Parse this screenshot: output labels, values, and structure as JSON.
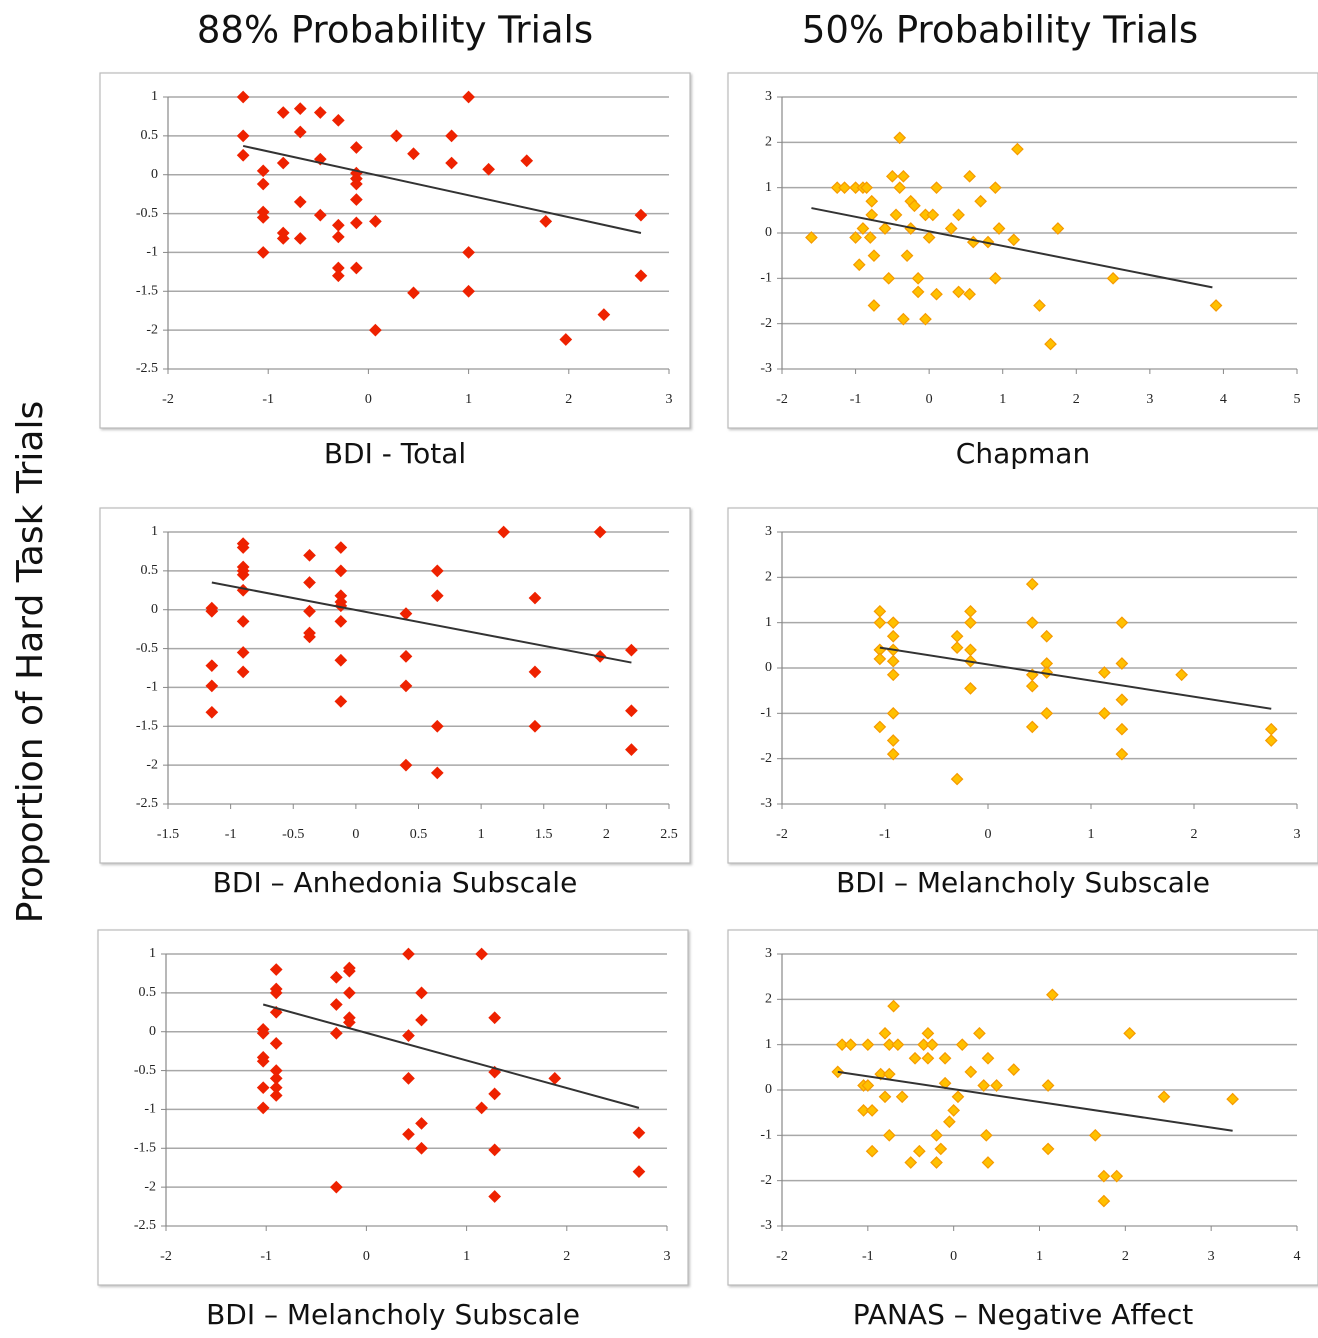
{
  "column_titles": [
    "88% Probability Trials",
    "50% Probability Trials"
  ],
  "ylabel": "Proportion of Hard Task Trials",
  "chart_data": [
    {
      "type": "scatter",
      "xlabel": "BDI - Total",
      "color": "#ee2200",
      "edgecolor": "#ee2200",
      "marker": "diamond",
      "grid": "y",
      "xlim": [
        -2,
        3
      ],
      "xticks": [
        -2,
        -1,
        0,
        1,
        2,
        3
      ],
      "ylim": [
        -2.5,
        1
      ],
      "yticks": [
        -2.5,
        -2,
        -1.5,
        -1,
        -0.5,
        0,
        0.5,
        1
      ],
      "x": [
        -1.25,
        -1.25,
        -1.25,
        -1.05,
        -1.05,
        -1.05,
        -1.05,
        -1.05,
        -0.85,
        -0.85,
        -0.85,
        -0.85,
        -0.68,
        -0.68,
        -0.68,
        -0.68,
        -0.48,
        -0.48,
        -0.48,
        -0.3,
        -0.3,
        -0.3,
        -0.3,
        -0.3,
        -0.12,
        -0.12,
        -0.12,
        -0.12,
        -0.12,
        -0.12,
        -0.12,
        0.07,
        0.07,
        0.28,
        0.45,
        0.45,
        0.83,
        0.83,
        1,
        1,
        1,
        1.2,
        1.58,
        1.77,
        1.97,
        2.35,
        2.72,
        2.72
      ],
      "y": [
        1,
        0.5,
        0.25,
        0.05,
        -0.12,
        -0.48,
        -0.55,
        -1,
        0.8,
        0.15,
        -0.75,
        -0.82,
        0.85,
        0.55,
        -0.35,
        -0.82,
        0.8,
        0.2,
        -0.52,
        0.7,
        -0.65,
        -0.8,
        -1.2,
        -1.3,
        0.35,
        0.02,
        -0.05,
        -0.12,
        -0.32,
        -0.62,
        -1.2,
        -0.6,
        -2,
        0.5,
        0.27,
        -1.52,
        0.5,
        0.15,
        1,
        -1,
        -1.5,
        0.07,
        0.18,
        -0.6,
        -2.12,
        -1.8,
        -0.52,
        -1.3
      ],
      "trendline": {
        "color": "#333333",
        "x": [
          -1.25,
          2.72
        ],
        "y": [
          0.37,
          -0.75
        ]
      }
    },
    {
      "type": "scatter",
      "xlabel": "Chapman",
      "color": "#ffc000",
      "edgecolor": "#f59a00",
      "marker": "diamond",
      "grid": "y",
      "xlim": [
        -2,
        5
      ],
      "xticks": [
        -2,
        -1,
        0,
        1,
        2,
        3,
        4,
        5
      ],
      "ylim": [
        -3,
        3
      ],
      "yticks": [
        -3,
        -2,
        -1,
        0,
        1,
        2,
        3
      ],
      "x": [
        -1.6,
        -1.25,
        -1.15,
        -1,
        -0.9,
        -0.85,
        -1,
        -0.95,
        -0.9,
        -0.8,
        -0.78,
        -0.78,
        -0.75,
        -0.75,
        -0.6,
        -0.55,
        -0.5,
        -0.45,
        -0.4,
        -0.4,
        -0.35,
        -0.35,
        -0.3,
        -0.25,
        -0.25,
        -0.2,
        -0.15,
        -0.15,
        -0.05,
        0,
        0.05,
        -0.05,
        0.1,
        0.1,
        0.3,
        0.4,
        0.4,
        0.55,
        0.55,
        0.6,
        0.7,
        0.8,
        0.9,
        0.9,
        0.95,
        1.15,
        1.2,
        1.5,
        1.65,
        1.75,
        2.5,
        3.9
      ],
      "y": [
        -0.1,
        1,
        1,
        1,
        1,
        1,
        -0.1,
        -0.7,
        0.1,
        -0.1,
        0.4,
        0.7,
        -0.5,
        -1.6,
        0.1,
        -1,
        1.25,
        0.4,
        2.1,
        1,
        1.25,
        -1.9,
        -0.5,
        0.1,
        0.7,
        0.6,
        -1,
        -1.3,
        0.4,
        -0.1,
        0.4,
        -1.9,
        1,
        -1.35,
        0.1,
        0.4,
        -1.3,
        1.25,
        -1.35,
        -0.2,
        0.7,
        -0.2,
        1,
        -1,
        0.1,
        -0.15,
        1.85,
        -1.6,
        -2.45,
        0.1,
        -1,
        -1.6
      ],
      "trendline": {
        "color": "#333333",
        "x": [
          -1.6,
          3.85
        ],
        "y": [
          0.55,
          -1.2
        ]
      }
    },
    {
      "type": "scatter",
      "xlabel": "BDI – Anhedonia Subscale",
      "color": "#ee2200",
      "edgecolor": "#ee2200",
      "marker": "diamond",
      "grid": "y",
      "xlim": [
        -1.5,
        2.5
      ],
      "xticks": [
        -1.5,
        -1,
        -0.5,
        0,
        0.5,
        1,
        1.5,
        2,
        2.5
      ],
      "ylim": [
        -2.5,
        1
      ],
      "yticks": [
        -2.5,
        -2,
        -1.5,
        -1,
        -0.5,
        0,
        0.5,
        1
      ],
      "x": [
        -1.15,
        -1.15,
        -1.15,
        -1.15,
        -1.15,
        -0.9,
        -0.9,
        -0.9,
        -0.9,
        -0.9,
        -0.9,
        -0.9,
        -0.9,
        -0.9,
        -0.37,
        -0.37,
        -0.37,
        -0.37,
        -0.37,
        -0.12,
        -0.12,
        -0.12,
        -0.12,
        -0.12,
        -0.12,
        -0.12,
        -0.12,
        0.4,
        0.4,
        0.4,
        0.4,
        0.65,
        0.65,
        0.65,
        0.65,
        1.18,
        1.43,
        1.43,
        1.43,
        1.95,
        1.95,
        2.2,
        2.2,
        2.2
      ],
      "y": [
        0.02,
        -0.02,
        -0.72,
        -0.98,
        -1.32,
        0.85,
        0.8,
        0.55,
        0.5,
        0.45,
        0.25,
        -0.15,
        -0.55,
        -0.8,
        0.7,
        0.35,
        -0.02,
        -0.3,
        -0.35,
        0.8,
        0.5,
        0.18,
        0.1,
        0.05,
        -0.15,
        -0.65,
        -1.18,
        -0.05,
        -0.6,
        -0.98,
        -2,
        0.5,
        0.18,
        -1.5,
        -2.1,
        1,
        0.15,
        -0.8,
        -1.5,
        1,
        -0.6,
        -0.52,
        -1.3,
        -1.8
      ],
      "trendline": {
        "color": "#333333",
        "x": [
          -1.15,
          2.2
        ],
        "y": [
          0.35,
          -0.68
        ]
      }
    },
    {
      "type": "scatter",
      "xlabel": "BDI – Melancholy Subscale",
      "color": "#ffc000",
      "edgecolor": "#f59a00",
      "marker": "diamond",
      "grid": "y",
      "xlim": [
        -2,
        3
      ],
      "xticks": [
        -2,
        -1,
        0,
        1,
        2,
        3
      ],
      "ylim": [
        -3,
        3
      ],
      "yticks": [
        -3,
        -2,
        -1,
        0,
        1,
        2,
        3
      ],
      "x": [
        -1.05,
        -1.05,
        -1.05,
        -1.05,
        -1.05,
        -0.92,
        -0.92,
        -0.92,
        -0.92,
        -0.92,
        -0.92,
        -0.92,
        -0.92,
        -0.3,
        -0.3,
        -0.3,
        -0.17,
        -0.17,
        -0.17,
        -0.17,
        -0.17,
        0.43,
        0.43,
        0.43,
        0.43,
        0.43,
        0.57,
        0.57,
        0.57,
        0.57,
        1.13,
        1.13,
        1.3,
        1.3,
        1.3,
        1.3,
        1.3,
        1.88,
        2.75,
        2.75
      ],
      "y": [
        1.25,
        1,
        0.4,
        0.2,
        -1.3,
        1,
        0.7,
        0.4,
        0.15,
        -0.15,
        -1,
        -1.6,
        -1.9,
        0.7,
        0.45,
        -2.45,
        1.25,
        1,
        0.4,
        0.15,
        -0.45,
        1.85,
        1,
        -0.15,
        -0.4,
        -1.3,
        0.7,
        0.1,
        -0.1,
        -1,
        -0.1,
        -1,
        1,
        0.1,
        -0.7,
        -1.35,
        -1.9,
        -0.15,
        -1.35,
        -1.6
      ],
      "trendline": {
        "color": "#333333",
        "x": [
          -1.05,
          2.75
        ],
        "y": [
          0.45,
          -0.9
        ]
      }
    },
    {
      "type": "scatter",
      "xlabel": "BDI – Melancholy Subscale",
      "color": "#ee2200",
      "edgecolor": "#ee2200",
      "marker": "diamond",
      "grid": "y",
      "xlim": [
        -2,
        3
      ],
      "xticks": [
        -2,
        -1,
        0,
        1,
        2,
        3
      ],
      "ylim": [
        -2.5,
        1
      ],
      "yticks": [
        -2.5,
        -2,
        -1.5,
        -1,
        -0.5,
        0,
        0.5,
        1
      ],
      "x": [
        -1.03,
        -1.03,
        -1.03,
        -1.03,
        -1.03,
        -1.03,
        -0.9,
        -0.9,
        -0.9,
        -0.9,
        -0.9,
        -0.9,
        -0.9,
        -0.9,
        -0.9,
        -0.3,
        -0.3,
        -0.3,
        -0.3,
        -0.17,
        -0.17,
        -0.17,
        -0.17,
        -0.17,
        0.42,
        0.42,
        0.42,
        0.42,
        0.55,
        0.55,
        0.55,
        0.55,
        1.15,
        1.15,
        1.28,
        1.28,
        1.28,
        1.28,
        1.28,
        1.88,
        2.72,
        2.72
      ],
      "y": [
        0.03,
        -0.02,
        -0.33,
        -0.38,
        -0.72,
        -0.98,
        0.8,
        0.55,
        0.5,
        0.25,
        -0.15,
        -0.5,
        -0.6,
        -0.72,
        -0.82,
        0.7,
        0.35,
        -0.02,
        -2,
        0.82,
        0.78,
        0.5,
        0.18,
        0.12,
        1,
        -0.05,
        -0.6,
        -1.32,
        0.5,
        0.15,
        -1.18,
        -1.5,
        1,
        -0.98,
        0.18,
        -0.52,
        -0.8,
        -1.52,
        -2.12,
        -0.6,
        -1.3,
        -1.8
      ],
      "trendline": {
        "color": "#333333",
        "x": [
          -1.03,
          2.72
        ],
        "y": [
          0.35,
          -0.98
        ]
      }
    },
    {
      "type": "scatter",
      "xlabel": "PANAS – Negative Affect",
      "color": "#ffc000",
      "edgecolor": "#f59a00",
      "marker": "diamond",
      "grid": "y",
      "xlim": [
        -2,
        4
      ],
      "xticks": [
        -2,
        -1,
        0,
        1,
        2,
        3,
        4
      ],
      "ylim": [
        -3,
        3
      ],
      "yticks": [
        -3,
        -2,
        -1,
        0,
        1,
        2,
        3
      ],
      "x": [
        -1.35,
        -1.3,
        -1.2,
        -1.05,
        -1.05,
        -1,
        -1,
        -0.95,
        -0.95,
        -0.85,
        -0.8,
        -0.8,
        -0.75,
        -0.75,
        -0.75,
        -0.7,
        -0.65,
        -0.6,
        -0.5,
        -0.45,
        -0.4,
        -0.35,
        -0.3,
        -0.3,
        -0.25,
        -0.2,
        -0.2,
        -0.15,
        -0.1,
        -0.1,
        -0.05,
        0,
        0.05,
        0.1,
        0.2,
        0.3,
        0.35,
        0.38,
        0.4,
        0.4,
        0.5,
        0.7,
        1.1,
        1.1,
        1.15,
        1.65,
        1.75,
        1.75,
        1.9,
        2.05,
        2.45,
        3.25
      ],
      "y": [
        0.4,
        1,
        1,
        -0.45,
        0.1,
        0.1,
        1,
        -1.35,
        -0.45,
        0.35,
        1.25,
        -0.15,
        1,
        0.35,
        -1,
        1.85,
        1,
        -0.15,
        -1.6,
        0.7,
        -1.35,
        1,
        0.7,
        1.25,
        1,
        -1,
        -1.6,
        -1.3,
        0.7,
        0.15,
        -0.7,
        -0.45,
        -0.15,
        1,
        0.4,
        1.25,
        0.1,
        -1,
        0.7,
        -1.6,
        0.1,
        0.45,
        0.1,
        -1.3,
        2.1,
        -1,
        -1.9,
        -2.45,
        -1.9,
        1.25,
        -0.15,
        -0.2
      ],
      "trendline": {
        "color": "#333333",
        "x": [
          -1.35,
          3.25
        ],
        "y": [
          0.4,
          -0.9
        ]
      }
    }
  ]
}
